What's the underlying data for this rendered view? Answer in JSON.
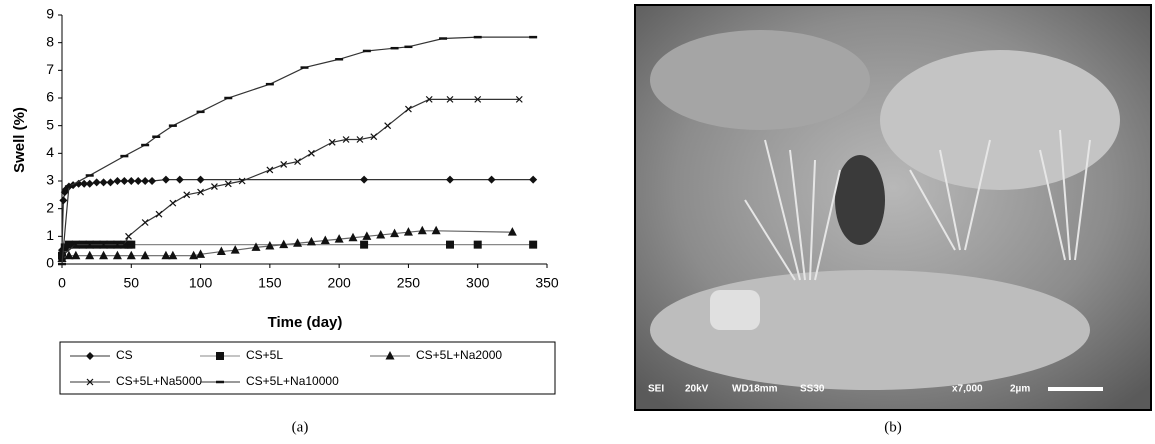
{
  "chart_data": {
    "type": "line",
    "y_label": "Swell (%)",
    "x_label": "Time (day)",
    "caption": "(a)",
    "xlim": [
      0,
      350
    ],
    "xticks": [
      0,
      50,
      100,
      150,
      200,
      250,
      300,
      350
    ],
    "ylim": [
      0,
      9
    ],
    "yticks": [
      0,
      1,
      2,
      3,
      4,
      5,
      6,
      7,
      8,
      9
    ],
    "legend": "bottom",
    "series": [
      {
        "name": "CS",
        "color": "#111111",
        "marker": "diamond",
        "x": [
          0,
          1,
          2,
          3,
          5,
          8,
          12,
          16,
          20,
          25,
          30,
          35,
          40,
          45,
          50,
          55,
          60,
          65,
          75,
          85,
          100,
          218,
          280,
          310,
          340
        ],
        "values": [
          0.5,
          2.3,
          2.6,
          2.7,
          2.8,
          2.85,
          2.9,
          2.9,
          2.9,
          2.95,
          2.95,
          2.95,
          3,
          3,
          3,
          3,
          3,
          3,
          3.05,
          3.05,
          3.05,
          3.05,
          3.05,
          3.05,
          3.05
        ]
      },
      {
        "name": "CS+5L",
        "color": "#111111",
        "marker": "square",
        "x": [
          0,
          2,
          5,
          10,
          15,
          20,
          25,
          30,
          35,
          40,
          45,
          48,
          50,
          218,
          280,
          300,
          340
        ],
        "values": [
          0.3,
          0.6,
          0.7,
          0.7,
          0.7,
          0.7,
          0.7,
          0.7,
          0.7,
          0.7,
          0.7,
          0.7,
          0.7,
          0.7,
          0.7,
          0.7,
          0.7
        ]
      },
      {
        "name": "CS+5L+Na2000",
        "color": "#111111",
        "marker": "triangle",
        "x": [
          0,
          5,
          10,
          20,
          30,
          40,
          50,
          60,
          75,
          80,
          95,
          100,
          115,
          125,
          140,
          150,
          160,
          170,
          180,
          190,
          200,
          210,
          220,
          230,
          240,
          250,
          260,
          270,
          325
        ],
        "values": [
          0.2,
          0.3,
          0.3,
          0.3,
          0.3,
          0.3,
          0.3,
          0.3,
          0.3,
          0.3,
          0.3,
          0.35,
          0.45,
          0.5,
          0.6,
          0.65,
          0.7,
          0.75,
          0.8,
          0.85,
          0.9,
          0.95,
          1.0,
          1.05,
          1.1,
          1.15,
          1.2,
          1.2,
          1.15
        ]
      },
      {
        "name": "CS+5L+Na5000",
        "color": "#111111",
        "marker": "cross",
        "x": [
          0,
          10,
          20,
          30,
          40,
          45,
          48,
          60,
          70,
          80,
          90,
          100,
          110,
          120,
          130,
          150,
          160,
          170,
          180,
          195,
          205,
          215,
          225,
          235,
          250,
          265,
          280,
          300,
          330
        ],
        "values": [
          0.3,
          0.7,
          0.7,
          0.7,
          0.7,
          0.7,
          1.0,
          1.5,
          1.8,
          2.2,
          2.5,
          2.6,
          2.8,
          2.9,
          3.0,
          3.4,
          3.6,
          3.7,
          4.0,
          4.4,
          4.5,
          4.5,
          4.6,
          5.0,
          5.6,
          5.95,
          5.95,
          5.95,
          5.95
        ]
      },
      {
        "name": "CS+5L+Na10000",
        "color": "#111111",
        "marker": "dash",
        "x": [
          0,
          5,
          20,
          45,
          60,
          68,
          80,
          100,
          120,
          150,
          175,
          200,
          220,
          240,
          250,
          275,
          300,
          340
        ],
        "values": [
          0,
          2.8,
          3.2,
          3.9,
          4.3,
          4.6,
          5.0,
          5.5,
          6.0,
          6.5,
          7.1,
          7.4,
          7.7,
          7.8,
          7.85,
          8.15,
          8.2,
          8.2
        ]
      }
    ]
  },
  "micrograph": {
    "info": [
      "SEI",
      "20kV",
      "WD18mm",
      "SS30",
      "x7,000",
      "2µm"
    ],
    "caption": "(b)"
  }
}
